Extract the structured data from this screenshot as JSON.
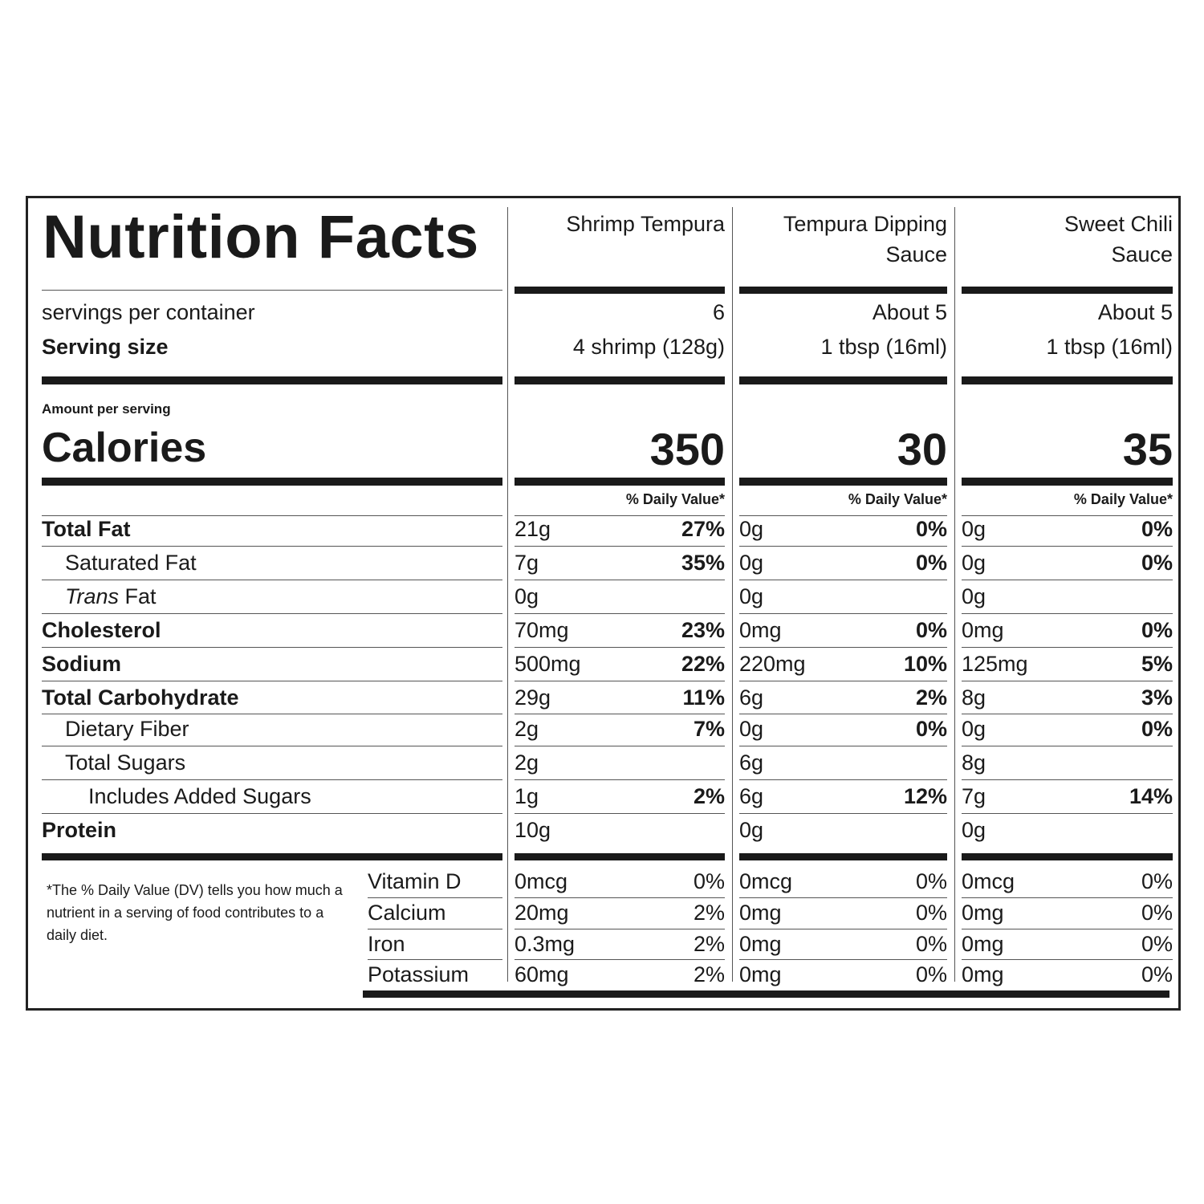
{
  "title": "Nutrition Facts",
  "products": [
    {
      "name_lines": [
        "Shrimp Tempura"
      ],
      "servings": "6",
      "serving_size": "4 shrimp (128g)",
      "calories": "350"
    },
    {
      "name_lines": [
        "Tempura Dipping",
        "Sauce"
      ],
      "servings": "About 5",
      "serving_size": "1 tbsp (16ml)",
      "calories": "30"
    },
    {
      "name_lines": [
        "Sweet Chili",
        "Sauce"
      ],
      "servings": "About 5",
      "serving_size": "1 tbsp (16ml)",
      "calories": "35"
    }
  ],
  "labels": {
    "servings_per_container": "servings per container",
    "serving_size": "Serving size",
    "amount_per_serving": "Amount per serving",
    "calories": "Calories",
    "daily_value": "% Daily Value*"
  },
  "nutrients": [
    {
      "label": "Total Fat",
      "bold": true,
      "indent": 0,
      "values": [
        [
          "21g",
          "27%"
        ],
        [
          "0g",
          "0%"
        ],
        [
          "0g",
          "0%"
        ]
      ]
    },
    {
      "label": "Saturated Fat",
      "bold": false,
      "indent": 1,
      "values": [
        [
          "7g",
          "35%"
        ],
        [
          "0g",
          "0%"
        ],
        [
          "0g",
          "0%"
        ]
      ]
    },
    {
      "label_italic": "Trans",
      "label": " Fat",
      "bold": false,
      "indent": 1,
      "values": [
        [
          "0g",
          ""
        ],
        [
          "0g",
          ""
        ],
        [
          "0g",
          ""
        ]
      ]
    },
    {
      "label": "Cholesterol",
      "bold": true,
      "indent": 0,
      "values": [
        [
          "70mg",
          "23%"
        ],
        [
          "0mg",
          "0%"
        ],
        [
          "0mg",
          "0%"
        ]
      ]
    },
    {
      "label": "Sodium",
      "bold": true,
      "indent": 0,
      "values": [
        [
          "500mg",
          "22%"
        ],
        [
          "220mg",
          "10%"
        ],
        [
          "125mg",
          "5%"
        ]
      ]
    },
    {
      "label": "Total Carbohydrate",
      "bold": true,
      "indent": 0,
      "values": [
        [
          "29g",
          "11%"
        ],
        [
          "6g",
          "2%"
        ],
        [
          "8g",
          "3%"
        ]
      ]
    },
    {
      "label": "Dietary Fiber",
      "bold": false,
      "indent": 1,
      "values": [
        [
          "2g",
          "7%"
        ],
        [
          "0g",
          "0%"
        ],
        [
          "0g",
          "0%"
        ]
      ]
    },
    {
      "label": "Total Sugars",
      "bold": false,
      "indent": 1,
      "values": [
        [
          "2g",
          ""
        ],
        [
          "6g",
          ""
        ],
        [
          "8g",
          ""
        ]
      ]
    },
    {
      "label": "Includes Added Sugars",
      "bold": false,
      "indent": 2,
      "values": [
        [
          "1g",
          "2%"
        ],
        [
          "6g",
          "12%"
        ],
        [
          "7g",
          "14%"
        ]
      ]
    },
    {
      "label": "Protein",
      "bold": true,
      "indent": 0,
      "values": [
        [
          "10g",
          ""
        ],
        [
          "0g",
          ""
        ],
        [
          "0g",
          ""
        ]
      ]
    }
  ],
  "vitamins": [
    {
      "label": "Vitamin D",
      "values": [
        [
          "0mcg",
          "0%"
        ],
        [
          "0mcg",
          "0%"
        ],
        [
          "0mcg",
          "0%"
        ]
      ]
    },
    {
      "label": "Calcium",
      "values": [
        [
          "20mg",
          "2%"
        ],
        [
          "0mg",
          "0%"
        ],
        [
          "0mg",
          "0%"
        ]
      ]
    },
    {
      "label": "Iron",
      "values": [
        [
          "0.3mg",
          "2%"
        ],
        [
          "0mg",
          "0%"
        ],
        [
          "0mg",
          "0%"
        ]
      ]
    },
    {
      "label": "Potassium",
      "values": [
        [
          "60mg",
          "2%"
        ],
        [
          "0mg",
          "0%"
        ],
        [
          "0mg",
          "0%"
        ]
      ]
    }
  ],
  "footnote": "*The % Daily Value (DV) tells you how much a nutrient in a serving of food contributes to a daily diet."
}
